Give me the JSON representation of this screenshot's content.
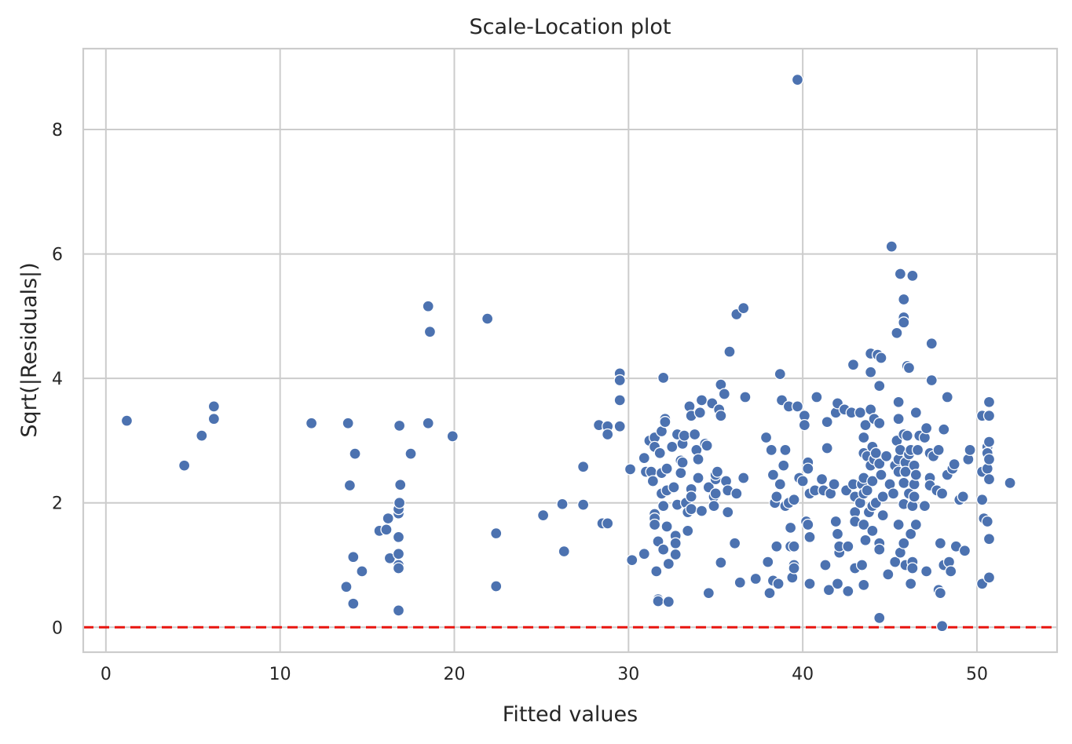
{
  "chart_data": {
    "type": "scatter",
    "title": "Scale-Location plot",
    "xlabel": "Fitted values",
    "ylabel": "Sqrt(|Residuals|)",
    "xlim": [
      -1.3,
      54.6
    ],
    "ylim": [
      -0.4,
      9.3
    ],
    "xticks": [
      0,
      10,
      20,
      30,
      40,
      50
    ],
    "yticks": [
      0,
      2,
      4,
      6,
      8
    ],
    "grid": true,
    "reference_line": {
      "y": 0,
      "style": "dashed",
      "color": "#e8140f"
    },
    "point_color": "#4c72b0",
    "points": [
      [
        1.2,
        3.32
      ],
      [
        4.5,
        2.6
      ],
      [
        5.5,
        3.08
      ],
      [
        6.2,
        3.55
      ],
      [
        6.2,
        3.35
      ],
      [
        11.8,
        3.28
      ],
      [
        13.9,
        3.28
      ],
      [
        14.0,
        2.28
      ],
      [
        14.2,
        1.13
      ],
      [
        14.3,
        2.79
      ],
      [
        13.8,
        0.65
      ],
      [
        14.2,
        0.38
      ],
      [
        14.7,
        0.9
      ],
      [
        15.7,
        1.55
      ],
      [
        16.1,
        1.57
      ],
      [
        16.2,
        1.75
      ],
      [
        16.3,
        1.11
      ],
      [
        16.8,
        1.83
      ],
      [
        16.8,
        1.9
      ],
      [
        16.85,
        2.0
      ],
      [
        16.8,
        1.45
      ],
      [
        16.8,
        1.18
      ],
      [
        16.8,
        1.0
      ],
      [
        16.8,
        0.95
      ],
      [
        16.8,
        0.27
      ],
      [
        16.85,
        3.24
      ],
      [
        16.9,
        2.29
      ],
      [
        17.5,
        2.79
      ],
      [
        18.5,
        5.16
      ],
      [
        18.6,
        4.75
      ],
      [
        18.5,
        3.28
      ],
      [
        19.9,
        3.07
      ],
      [
        21.9,
        4.96
      ],
      [
        22.4,
        1.51
      ],
      [
        22.4,
        0.66
      ],
      [
        25.1,
        1.8
      ],
      [
        26.2,
        1.98
      ],
      [
        26.3,
        1.22
      ],
      [
        27.4,
        2.58
      ],
      [
        27.4,
        1.97
      ],
      [
        28.3,
        3.25
      ],
      [
        28.5,
        1.67
      ],
      [
        28.8,
        1.67
      ],
      [
        28.8,
        3.23
      ],
      [
        28.8,
        3.1
      ],
      [
        29.5,
        4.08
      ],
      [
        29.5,
        3.97
      ],
      [
        29.5,
        3.65
      ],
      [
        29.5,
        3.23
      ],
      [
        30.1,
        2.54
      ],
      [
        30.2,
        1.08
      ],
      [
        30.9,
        1.18
      ],
      [
        30.9,
        2.72
      ],
      [
        31.0,
        2.5
      ],
      [
        31.2,
        3.0
      ],
      [
        31.3,
        2.5
      ],
      [
        31.4,
        2.35
      ],
      [
        31.5,
        3.05
      ],
      [
        31.5,
        2.9
      ],
      [
        31.5,
        1.82
      ],
      [
        31.5,
        1.75
      ],
      [
        31.5,
        1.65
      ],
      [
        31.6,
        0.9
      ],
      [
        31.7,
        0.45
      ],
      [
        31.7,
        0.42
      ],
      [
        31.7,
        1.38
      ],
      [
        31.8,
        2.8
      ],
      [
        31.9,
        3.15
      ],
      [
        31.9,
        2.48
      ],
      [
        31.9,
        2.15
      ],
      [
        32.0,
        1.95
      ],
      [
        32.0,
        1.25
      ],
      [
        32.0,
        4.01
      ],
      [
        32.1,
        3.35
      ],
      [
        32.1,
        3.3
      ],
      [
        32.2,
        2.55
      ],
      [
        32.2,
        2.2
      ],
      [
        32.2,
        1.62
      ],
      [
        32.3,
        1.02
      ],
      [
        32.3,
        0.41
      ],
      [
        32.5,
        2.9
      ],
      [
        32.6,
        2.25
      ],
      [
        32.7,
        1.47
      ],
      [
        32.7,
        1.35
      ],
      [
        32.7,
        1.17
      ],
      [
        32.8,
        3.1
      ],
      [
        32.8,
        1.97
      ],
      [
        33.0,
        2.48
      ],
      [
        33.0,
        2.68
      ],
      [
        33.1,
        2.95
      ],
      [
        33.1,
        2.65
      ],
      [
        33.2,
        3.08
      ],
      [
        33.3,
        2.0
      ],
      [
        33.4,
        1.85
      ],
      [
        33.4,
        1.55
      ],
      [
        33.5,
        3.55
      ],
      [
        33.6,
        3.4
      ],
      [
        33.6,
        2.22
      ],
      [
        33.6,
        2.1
      ],
      [
        33.6,
        1.9
      ],
      [
        33.8,
        3.1
      ],
      [
        33.9,
        2.85
      ],
      [
        34.0,
        2.7
      ],
      [
        34.0,
        2.4
      ],
      [
        34.1,
        3.45
      ],
      [
        34.2,
        3.65
      ],
      [
        34.2,
        1.87
      ],
      [
        34.4,
        2.95
      ],
      [
        34.5,
        2.92
      ],
      [
        34.6,
        2.25
      ],
      [
        34.6,
        0.55
      ],
      [
        34.8,
        3.6
      ],
      [
        34.9,
        2.1
      ],
      [
        34.9,
        1.95
      ],
      [
        35.0,
        2.38
      ],
      [
        35.0,
        2.45
      ],
      [
        35.0,
        2.15
      ],
      [
        35.1,
        2.5
      ],
      [
        35.2,
        3.5
      ],
      [
        35.3,
        3.4
      ],
      [
        35.3,
        3.9
      ],
      [
        35.3,
        1.04
      ],
      [
        35.5,
        3.75
      ],
      [
        35.6,
        2.35
      ],
      [
        35.7,
        2.2
      ],
      [
        35.7,
        1.85
      ],
      [
        35.8,
        4.43
      ],
      [
        36.1,
        1.35
      ],
      [
        36.2,
        2.15
      ],
      [
        36.2,
        5.03
      ],
      [
        36.4,
        0.72
      ],
      [
        36.6,
        5.13
      ],
      [
        36.6,
        2.4
      ],
      [
        36.7,
        3.7
      ],
      [
        37.3,
        0.78
      ],
      [
        37.9,
        3.05
      ],
      [
        38.0,
        1.05
      ],
      [
        38.1,
        0.55
      ],
      [
        38.2,
        2.85
      ],
      [
        38.3,
        2.45
      ],
      [
        38.3,
        0.75
      ],
      [
        38.4,
        2.0
      ],
      [
        38.5,
        1.3
      ],
      [
        38.5,
        2.1
      ],
      [
        38.6,
        0.7
      ],
      [
        38.7,
        2.3
      ],
      [
        38.7,
        4.07
      ],
      [
        38.8,
        3.65
      ],
      [
        38.9,
        2.6
      ],
      [
        39.0,
        1.95
      ],
      [
        39.0,
        2.85
      ],
      [
        39.2,
        2.0
      ],
      [
        39.2,
        3.55
      ],
      [
        39.3,
        1.3
      ],
      [
        39.3,
        1.6
      ],
      [
        39.4,
        0.8
      ],
      [
        39.5,
        1.3
      ],
      [
        39.5,
        1.0
      ],
      [
        39.5,
        0.95
      ],
      [
        39.5,
        2.05
      ],
      [
        39.7,
        3.55
      ],
      [
        39.7,
        8.8
      ],
      [
        39.8,
        2.4
      ],
      [
        40.0,
        2.35
      ],
      [
        40.1,
        3.4
      ],
      [
        40.1,
        3.25
      ],
      [
        40.2,
        1.7
      ],
      [
        40.3,
        2.65
      ],
      [
        40.3,
        2.55
      ],
      [
        40.3,
        1.65
      ],
      [
        40.4,
        1.45
      ],
      [
        40.4,
        2.15
      ],
      [
        40.4,
        0.7
      ],
      [
        40.7,
        2.2
      ],
      [
        40.8,
        3.7
      ],
      [
        41.1,
        2.38
      ],
      [
        41.2,
        2.2
      ],
      [
        41.3,
        1.0
      ],
      [
        41.4,
        3.3
      ],
      [
        41.4,
        2.88
      ],
      [
        41.5,
        0.6
      ],
      [
        41.6,
        2.15
      ],
      [
        41.8,
        2.3
      ],
      [
        41.9,
        3.45
      ],
      [
        41.9,
        1.7
      ],
      [
        42.0,
        3.6
      ],
      [
        42.0,
        0.7
      ],
      [
        42.0,
        1.5
      ],
      [
        42.1,
        1.2
      ],
      [
        42.1,
        1.3
      ],
      [
        42.4,
        3.5
      ],
      [
        42.5,
        2.2
      ],
      [
        42.6,
        0.58
      ],
      [
        42.6,
        1.3
      ],
      [
        42.8,
        3.45
      ],
      [
        42.9,
        4.22
      ],
      [
        42.9,
        2.3
      ],
      [
        43.0,
        1.85
      ],
      [
        43.0,
        1.7
      ],
      [
        43.0,
        2.1
      ],
      [
        43.0,
        0.95
      ],
      [
        43.3,
        2.0
      ],
      [
        43.3,
        3.45
      ],
      [
        43.4,
        2.3
      ],
      [
        43.4,
        1.0
      ],
      [
        43.5,
        3.05
      ],
      [
        43.5,
        2.8
      ],
      [
        43.5,
        2.4
      ],
      [
        43.5,
        2.15
      ],
      [
        43.5,
        1.65
      ],
      [
        43.5,
        0.68
      ],
      [
        43.6,
        1.4
      ],
      [
        43.6,
        3.25
      ],
      [
        43.7,
        2.2
      ],
      [
        43.7,
        2.75
      ],
      [
        43.8,
        1.85
      ],
      [
        43.9,
        3.5
      ],
      [
        43.9,
        2.6
      ],
      [
        43.9,
        4.4
      ],
      [
        43.9,
        4.1
      ],
      [
        44.0,
        2.9
      ],
      [
        44.0,
        1.95
      ],
      [
        44.0,
        1.55
      ],
      [
        44.0,
        2.35
      ],
      [
        44.1,
        2.7
      ],
      [
        44.1,
        3.35
      ],
      [
        44.2,
        2.8
      ],
      [
        44.2,
        2.0
      ],
      [
        44.3,
        4.38
      ],
      [
        44.4,
        3.88
      ],
      [
        44.4,
        3.28
      ],
      [
        44.4,
        2.63
      ],
      [
        44.4,
        1.35
      ],
      [
        44.4,
        1.25
      ],
      [
        44.4,
        0.15
      ],
      [
        44.5,
        4.33
      ],
      [
        44.5,
        2.45
      ],
      [
        44.6,
        1.8
      ],
      [
        44.6,
        2.1
      ],
      [
        44.8,
        2.75
      ],
      [
        44.9,
        0.85
      ],
      [
        45.0,
        2.3
      ],
      [
        45.1,
        6.12
      ],
      [
        45.2,
        2.15
      ],
      [
        45.3,
        2.6
      ],
      [
        45.3,
        1.05
      ],
      [
        45.4,
        4.73
      ],
      [
        45.4,
        3.0
      ],
      [
        45.5,
        3.62
      ],
      [
        45.5,
        3.35
      ],
      [
        45.5,
        2.7
      ],
      [
        45.5,
        2.5
      ],
      [
        45.5,
        1.65
      ],
      [
        45.6,
        1.2
      ],
      [
        45.6,
        2.85
      ],
      [
        45.6,
        5.68
      ],
      [
        45.8,
        5.27
      ],
      [
        45.8,
        4.98
      ],
      [
        45.8,
        4.9
      ],
      [
        45.8,
        3.1
      ],
      [
        45.8,
        2.32
      ],
      [
        45.8,
        1.98
      ],
      [
        45.8,
        1.35
      ],
      [
        45.9,
        1.0
      ],
      [
        45.9,
        2.65
      ],
      [
        45.9,
        2.5
      ],
      [
        46.0,
        4.2
      ],
      [
        46.0,
        3.08
      ],
      [
        46.1,
        2.78
      ],
      [
        46.1,
        2.15
      ],
      [
        46.1,
        4.17
      ],
      [
        46.2,
        2.85
      ],
      [
        46.2,
        1.5
      ],
      [
        46.2,
        0.7
      ],
      [
        46.3,
        5.65
      ],
      [
        46.3,
        1.95
      ],
      [
        46.3,
        1.05
      ],
      [
        46.3,
        0.95
      ],
      [
        46.4,
        2.6
      ],
      [
        46.4,
        2.3
      ],
      [
        46.4,
        2.1
      ],
      [
        46.5,
        3.45
      ],
      [
        46.5,
        2.45
      ],
      [
        46.5,
        1.65
      ],
      [
        46.6,
        2.85
      ],
      [
        46.7,
        3.08
      ],
      [
        47.0,
        1.95
      ],
      [
        47.0,
        3.05
      ],
      [
        47.1,
        0.9
      ],
      [
        47.1,
        3.2
      ],
      [
        47.3,
        2.4
      ],
      [
        47.3,
        2.28
      ],
      [
        47.3,
        2.8
      ],
      [
        47.4,
        4.56
      ],
      [
        47.4,
        3.97
      ],
      [
        47.5,
        2.75
      ],
      [
        47.7,
        2.2
      ],
      [
        47.8,
        2.85
      ],
      [
        47.8,
        0.6
      ],
      [
        47.9,
        0.55
      ],
      [
        47.9,
        1.35
      ],
      [
        48.0,
        2.15
      ],
      [
        48.0,
        0.02
      ],
      [
        48.1,
        3.18
      ],
      [
        48.1,
        1.0
      ],
      [
        48.3,
        3.7
      ],
      [
        48.3,
        2.45
      ],
      [
        48.4,
        1.05
      ],
      [
        48.5,
        0.9
      ],
      [
        48.6,
        2.55
      ],
      [
        48.7,
        2.62
      ],
      [
        48.8,
        1.3
      ],
      [
        49.0,
        2.05
      ],
      [
        49.2,
        2.1
      ],
      [
        49.3,
        1.23
      ],
      [
        49.5,
        2.7
      ],
      [
        49.6,
        2.85
      ],
      [
        50.3,
        3.4
      ],
      [
        50.3,
        2.5
      ],
      [
        50.3,
        2.05
      ],
      [
        50.3,
        0.7
      ],
      [
        50.4,
        1.75
      ],
      [
        50.6,
        2.9
      ],
      [
        50.6,
        2.8
      ],
      [
        50.6,
        2.55
      ],
      [
        50.6,
        1.7
      ],
      [
        50.7,
        3.62
      ],
      [
        50.7,
        3.4
      ],
      [
        50.7,
        2.98
      ],
      [
        50.7,
        2.7
      ],
      [
        50.7,
        2.38
      ],
      [
        50.7,
        1.42
      ],
      [
        50.7,
        0.8
      ],
      [
        51.9,
        2.32
      ]
    ]
  }
}
